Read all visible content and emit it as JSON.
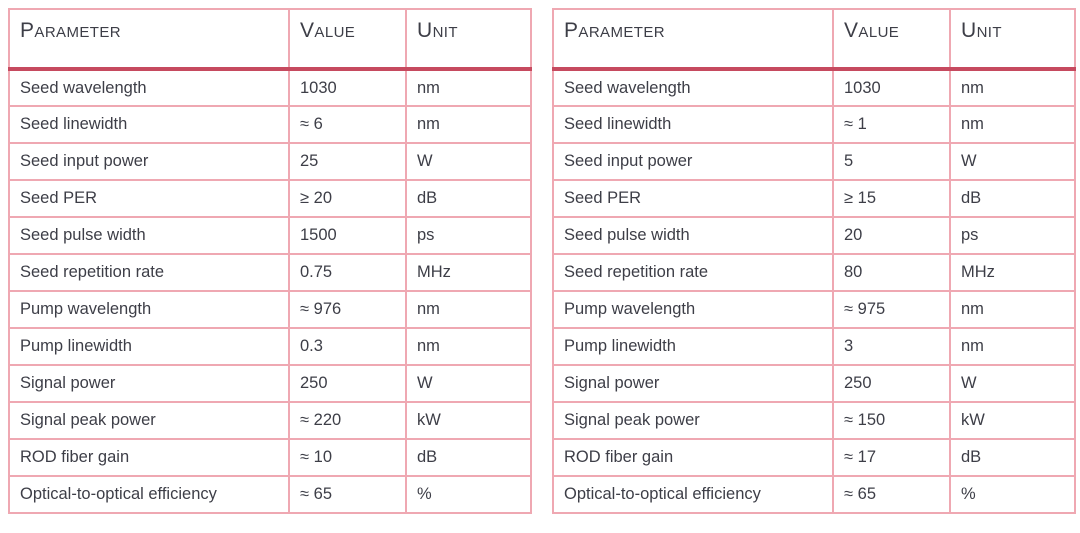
{
  "colors": {
    "header_rule": "#c64a5f",
    "cell_border": "#efa8b2",
    "text": "#3d3e47",
    "background": "#ffffff"
  },
  "tables": [
    {
      "name": "left-spec-table",
      "columns": [
        "Parameter",
        "Value",
        "Unit"
      ],
      "rows": [
        {
          "parameter": "Seed wavelength",
          "value": "1030",
          "unit": "nm"
        },
        {
          "parameter": "Seed linewidth",
          "value": "≈ 6",
          "unit": "nm"
        },
        {
          "parameter": "Seed input power",
          "value": "25",
          "unit": "W"
        },
        {
          "parameter": "Seed PER",
          "value": "≥ 20",
          "unit": "dB"
        },
        {
          "parameter": "Seed pulse width",
          "value": "1500",
          "unit": "ps"
        },
        {
          "parameter": "Seed repetition rate",
          "value": "0.75",
          "unit": "MHz"
        },
        {
          "parameter": "Pump wavelength",
          "value": "≈ 976",
          "unit": "nm"
        },
        {
          "parameter": "Pump linewidth",
          "value": "0.3",
          "unit": "nm"
        },
        {
          "parameter": "Signal power",
          "value": "250",
          "unit": "W"
        },
        {
          "parameter": "Signal peak power",
          "value": "≈ 220",
          "unit": "kW"
        },
        {
          "parameter": "ROD fiber gain",
          "value": "≈ 10",
          "unit": "dB"
        },
        {
          "parameter": "Optical-to-optical efficiency",
          "value": "≈ 65",
          "unit": "%"
        }
      ]
    },
    {
      "name": "right-spec-table",
      "columns": [
        "Parameter",
        "Value",
        "Unit"
      ],
      "rows": [
        {
          "parameter": "Seed wavelength",
          "value": "1030",
          "unit": "nm"
        },
        {
          "parameter": "Seed linewidth",
          "value": "≈ 1",
          "unit": "nm"
        },
        {
          "parameter": "Seed input power",
          "value": "5",
          "unit": "W"
        },
        {
          "parameter": "Seed PER",
          "value": "≥ 15",
          "unit": "dB"
        },
        {
          "parameter": "Seed pulse width",
          "value": "20",
          "unit": "ps"
        },
        {
          "parameter": "Seed repetition rate",
          "value": "80",
          "unit": "MHz"
        },
        {
          "parameter": "Pump wavelength",
          "value": "≈ 975",
          "unit": "nm"
        },
        {
          "parameter": "Pump linewidth",
          "value": "3",
          "unit": "nm"
        },
        {
          "parameter": "Signal power",
          "value": "250",
          "unit": "W"
        },
        {
          "parameter": "Signal peak power",
          "value": "≈ 150",
          "unit": "kW"
        },
        {
          "parameter": "ROD fiber gain",
          "value": "≈ 17",
          "unit": "dB"
        },
        {
          "parameter": "Optical-to-optical efficiency",
          "value": "≈ 65",
          "unit": "%"
        }
      ]
    }
  ]
}
